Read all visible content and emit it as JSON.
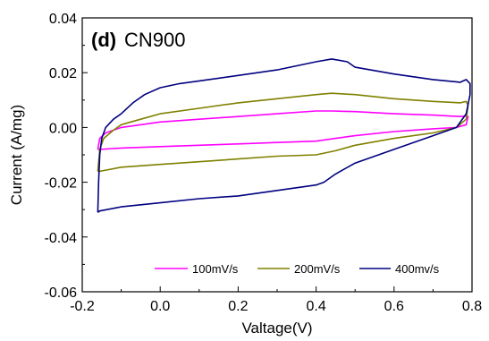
{
  "chart_data": {
    "type": "line",
    "title_tag": "(d)",
    "title": "CN900",
    "xlabel": "Valtage(V)",
    "ylabel": "Current (A/mg)",
    "xlim": [
      -0.2,
      0.8
    ],
    "ylim": [
      -0.06,
      0.04
    ],
    "xticks": [
      -0.2,
      0.0,
      0.2,
      0.4,
      0.6,
      0.8
    ],
    "xtick_labels": [
      "-0.2",
      "0.0",
      "0.2",
      "0.4",
      "0.6",
      "0.8"
    ],
    "yticks": [
      -0.06,
      -0.04,
      -0.02,
      0.0,
      0.02,
      0.04
    ],
    "ytick_labels": [
      "-0.06",
      "-0.04",
      "-0.02",
      "0.00",
      "0.02",
      "0.04"
    ],
    "grid": false,
    "legend_position": "bottom-right",
    "series": [
      {
        "name": "100mV/s",
        "color": "#ff00ff",
        "points": [
          [
            -0.16,
            -0.008
          ],
          [
            -0.155,
            -0.004
          ],
          [
            -0.14,
            -0.002
          ],
          [
            -0.1,
            0.0
          ],
          [
            0.0,
            0.002
          ],
          [
            0.1,
            0.003
          ],
          [
            0.2,
            0.004
          ],
          [
            0.3,
            0.005
          ],
          [
            0.4,
            0.006
          ],
          [
            0.44,
            0.006
          ],
          [
            0.5,
            0.0058
          ],
          [
            0.6,
            0.005
          ],
          [
            0.7,
            0.0045
          ],
          [
            0.77,
            0.004
          ],
          [
            0.785,
            0.0042
          ],
          [
            0.79,
            0.004
          ],
          [
            0.785,
            0.001
          ],
          [
            0.76,
            0.0
          ],
          [
            0.7,
            -0.0005
          ],
          [
            0.6,
            -0.0015
          ],
          [
            0.5,
            -0.003
          ],
          [
            0.45,
            -0.004
          ],
          [
            0.4,
            -0.005
          ],
          [
            0.3,
            -0.0055
          ],
          [
            0.2,
            -0.006
          ],
          [
            0.1,
            -0.0065
          ],
          [
            0.0,
            -0.007
          ],
          [
            -0.1,
            -0.0075
          ],
          [
            -0.155,
            -0.008
          ]
        ]
      },
      {
        "name": "200mV/s",
        "color": "#808000",
        "points": [
          [
            -0.16,
            -0.016
          ],
          [
            -0.155,
            -0.008
          ],
          [
            -0.145,
            -0.004
          ],
          [
            -0.12,
            -0.001
          ],
          [
            -0.1,
            0.001
          ],
          [
            -0.05,
            0.003
          ],
          [
            0.0,
            0.005
          ],
          [
            0.1,
            0.007
          ],
          [
            0.2,
            0.009
          ],
          [
            0.3,
            0.0105
          ],
          [
            0.4,
            0.012
          ],
          [
            0.44,
            0.0125
          ],
          [
            0.5,
            0.012
          ],
          [
            0.6,
            0.0105
          ],
          [
            0.7,
            0.0095
          ],
          [
            0.77,
            0.009
          ],
          [
            0.785,
            0.0095
          ],
          [
            0.79,
            0.008
          ],
          [
            0.785,
            0.003
          ],
          [
            0.76,
            0.0
          ],
          [
            0.7,
            -0.002
          ],
          [
            0.6,
            -0.004
          ],
          [
            0.5,
            -0.0065
          ],
          [
            0.45,
            -0.0085
          ],
          [
            0.4,
            -0.01
          ],
          [
            0.3,
            -0.0105
          ],
          [
            0.2,
            -0.0115
          ],
          [
            0.1,
            -0.0125
          ],
          [
            0.0,
            -0.0135
          ],
          [
            -0.1,
            -0.0145
          ],
          [
            -0.155,
            -0.016
          ]
        ]
      },
      {
        "name": "400mv/s",
        "color": "#000080",
        "points": [
          [
            -0.16,
            -0.031
          ],
          [
            -0.158,
            -0.02
          ],
          [
            -0.155,
            -0.01
          ],
          [
            -0.15,
            -0.004
          ],
          [
            -0.14,
            0.0
          ],
          [
            -0.12,
            0.003
          ],
          [
            -0.1,
            0.005
          ],
          [
            -0.07,
            0.009
          ],
          [
            -0.04,
            0.012
          ],
          [
            0.0,
            0.0145
          ],
          [
            0.05,
            0.016
          ],
          [
            0.1,
            0.017
          ],
          [
            0.2,
            0.019
          ],
          [
            0.3,
            0.021
          ],
          [
            0.4,
            0.024
          ],
          [
            0.44,
            0.025
          ],
          [
            0.48,
            0.024
          ],
          [
            0.5,
            0.022
          ],
          [
            0.6,
            0.0195
          ],
          [
            0.7,
            0.0175
          ],
          [
            0.77,
            0.0165
          ],
          [
            0.785,
            0.0175
          ],
          [
            0.795,
            0.016
          ],
          [
            0.795,
            0.012
          ],
          [
            0.785,
            0.005
          ],
          [
            0.76,
            0.0
          ],
          [
            0.7,
            -0.003
          ],
          [
            0.6,
            -0.008
          ],
          [
            0.5,
            -0.013
          ],
          [
            0.45,
            -0.017
          ],
          [
            0.42,
            -0.02
          ],
          [
            0.4,
            -0.021
          ],
          [
            0.3,
            -0.023
          ],
          [
            0.2,
            -0.025
          ],
          [
            0.1,
            -0.026
          ],
          [
            0.0,
            -0.0275
          ],
          [
            -0.1,
            -0.029
          ],
          [
            -0.155,
            -0.0305
          ]
        ]
      }
    ]
  }
}
